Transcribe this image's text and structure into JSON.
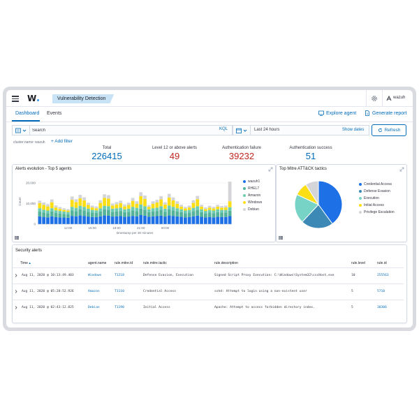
{
  "header": {
    "logo": "W",
    "breadcrumb": "Vulnerability Detection",
    "user": "wazuh"
  },
  "tabs": [
    {
      "label": "Dashboard",
      "active": true
    },
    {
      "label": "Events",
      "active": false
    }
  ],
  "actions": {
    "explore_agent": "Explore agent",
    "generate_report": "Generate report"
  },
  "search": {
    "placeholder": "Search",
    "language": "KQL"
  },
  "date": {
    "range": "Last 24 hours",
    "show_dates": "Show dates",
    "refresh": "Refresh"
  },
  "filters": {
    "pinned": "cluster.name: wazuh",
    "add_filter": "+ Add filter"
  },
  "metrics": [
    {
      "label": "Total",
      "value": "226415",
      "color": "#006bb8"
    },
    {
      "label": "Level 12 or above alerts",
      "value": "49",
      "color": "#bd271e"
    },
    {
      "label": "Authentication failure",
      "value": "39232",
      "color": "#bd271e"
    },
    {
      "label": "Authentication success",
      "value": "51",
      "color": "#006bb8"
    }
  ],
  "alerts_evolution": {
    "title": "Alerts evolution - Top 5 agents",
    "ylabel": "Count",
    "xlabel": "timestamp per 30 minutes",
    "x_ticks": [
      "12:00",
      "15:00",
      "18:00",
      "21:00",
      "00:00"
    ],
    "y_ticks": [
      "20,000",
      "10,000",
      "0"
    ]
  },
  "chart_data": [
    {
      "type": "bar",
      "stacked": true,
      "title": "Alerts evolution - Top 5 agents",
      "xlabel": "timestamp per 30 minutes",
      "ylabel": "Count",
      "ylim": [
        0,
        22000
      ],
      "x_ticks": [
        "12:00",
        "15:00",
        "18:00",
        "21:00",
        "00:00"
      ],
      "series": [
        {
          "name": "wazuh1",
          "color": "#1e70e6",
          "values": [
            3800,
            3500,
            3300,
            3800,
            3400,
            3300,
            3200,
            3100,
            4000,
            3800,
            4200,
            4000,
            3700,
            3500,
            3400,
            3800,
            4200,
            4100,
            3700,
            3800,
            3900,
            3600,
            3700,
            4000,
            3800,
            4400,
            4100,
            3600,
            3800,
            3900,
            4100,
            3700,
            4200,
            4000,
            3800,
            3600,
            3300,
            3500,
            3800,
            4100,
            3600,
            3300,
            3500,
            3300,
            3600,
            3500,
            3500,
            3900
          ]
        },
        {
          "name": "RHEL7",
          "color": "#54b399",
          "values": [
            2400,
            2100,
            2000,
            2400,
            2000,
            1900,
            1800,
            1700,
            2700,
            2500,
            2900,
            2700,
            2300,
            2100,
            2000,
            2400,
            2900,
            2800,
            2300,
            2400,
            2500,
            2200,
            2300,
            2700,
            2500,
            3100,
            2800,
            2200,
            2400,
            2500,
            2800,
            2300,
            2900,
            2700,
            2400,
            2200,
            2000,
            2100,
            2500,
            2800,
            2200,
            1900,
            2100,
            2000,
            2200,
            2100,
            2100,
            2600
          ]
        },
        {
          "name": "Amazon",
          "color": "#6dccb1",
          "values": [
            1500,
            1400,
            1300,
            1500,
            1300,
            1200,
            1100,
            1100,
            1700,
            1600,
            1800,
            1700,
            1500,
            1300,
            1300,
            1500,
            1800,
            1800,
            1500,
            1500,
            1600,
            1400,
            1500,
            1700,
            1600,
            2000,
            1800,
            1400,
            1500,
            1600,
            1800,
            1500,
            1900,
            1700,
            1500,
            1400,
            1300,
            1300,
            1600,
            1800,
            1400,
            1200,
            1300,
            1300,
            1400,
            1300,
            1300,
            1700
          ]
        },
        {
          "name": "Windows",
          "color": "#fcde16",
          "values": [
            2500,
            2300,
            2000,
            2900,
            1400,
            1000,
            800,
            700,
            3400,
            2800,
            3600,
            3100,
            1800,
            1200,
            1000,
            2600,
            3800,
            3700,
            1500,
            1900,
            2200,
            1400,
            1800,
            2900,
            2000,
            4100,
            3500,
            1200,
            2200,
            2500,
            3300,
            2000,
            3900,
            3100,
            2200,
            1300,
            1000,
            1200,
            2400,
            3400,
            1300,
            900,
            1100,
            1000,
            1300,
            1100,
            1200,
            2900
          ]
        },
        {
          "name": "Debian",
          "color": "#d4d5d8",
          "values": [
            1200,
            1200,
            1100,
            1400,
            1000,
            900,
            800,
            700,
            1600,
            1400,
            1700,
            1500,
            1100,
            900,
            900,
            1300,
            1800,
            1700,
            1000,
            1100,
            1200,
            1000,
            1100,
            1400,
            1200,
            1900,
            1700,
            900,
            1200,
            1300,
            1600,
            1100,
            1800,
            1500,
            1200,
            900,
            800,
            900,
            1300,
            1600,
            900,
            800,
            900,
            800,
            900,
            800,
            900,
            9500
          ]
        }
      ]
    },
    {
      "type": "pie",
      "title": "Top Mitre ATT&CK tactics",
      "labels": [
        "Credential Access",
        "Defense Evasion",
        "Execution",
        "Initial Access",
        "Privilege Escalation"
      ],
      "values": [
        40,
        22,
        20,
        9,
        9
      ],
      "colors": [
        "#1e70e6",
        "#3b89b4",
        "#76d3c5",
        "#fcde16",
        "#d4d5d8"
      ]
    }
  ],
  "mitre": {
    "title": "Top Mitre ATT&CK tactics"
  },
  "security_alerts": {
    "title": "Security alerts",
    "columns": [
      "Time",
      "agent.name",
      "rule.mitre.id",
      "rule.mitre.tactic",
      "rule.description",
      "rule.level",
      "rule.id"
    ],
    "rows": [
      {
        "time": "Aug 11, 2020 @ 10:13:49.403",
        "agent": "Windows",
        "mitre_id": "T1218",
        "tactic": "Defense Evasion, Execution",
        "description": "Signed Script Proxy Execution: C:\\Windows\\System32\\cscHost.exe",
        "level": "10",
        "rule_id": "255563"
      },
      {
        "time": "Aug 11, 2020 @ 05:28:52.926",
        "agent": "Amazon",
        "mitre_id": "T1110",
        "tactic": "Credential Access",
        "description": "sshd: Attempt to login using a non-existent user",
        "level": "5",
        "rule_id": "5710"
      },
      {
        "time": "Aug 11, 2020 @ 02:43:12.825",
        "agent": "Debian",
        "mitre_id": "T1190",
        "tactic": "Initial Access",
        "description": "Apache: Attempt to access forbidden directory index.",
        "level": "5",
        "rule_id": "30306"
      }
    ]
  }
}
